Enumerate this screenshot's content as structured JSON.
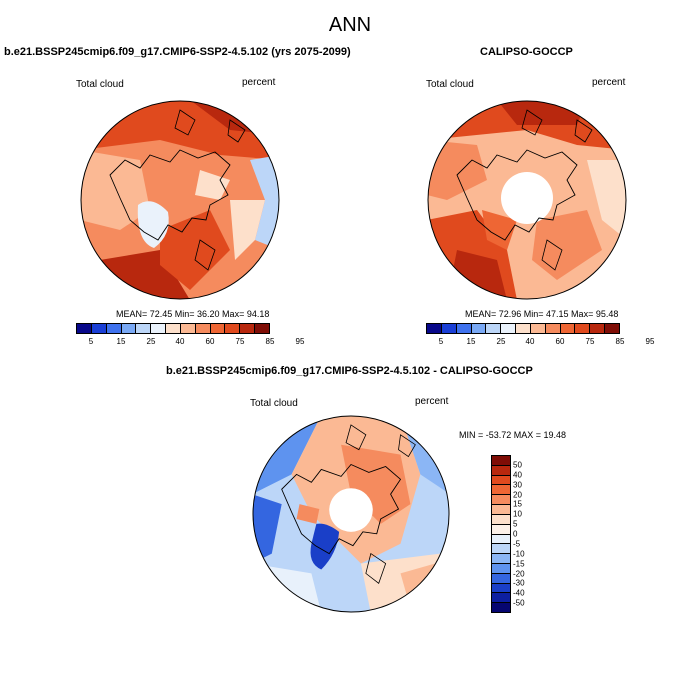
{
  "main_title": "ANN",
  "panels": [
    {
      "title": "b.e21.BSSP245cmip6.f09_g17.CMIP6-SSP2-4.5.102 (yrs 2075-2099)",
      "variable": "Total cloud",
      "units": "percent",
      "stats": "MEAN= 72.45  Min= 36.20  Max= 94.18"
    },
    {
      "title": "CALIPSO-GOCCP",
      "variable": "Total cloud",
      "units": "percent",
      "stats": "MEAN= 72.96  Min= 47.15  Max= 95.48"
    },
    {
      "title": "b.e21.BSSP245cmip6.f09_g17.CMIP6-SSP2-4.5.102 - CALIPSO-GOCCP",
      "variable": "Total cloud",
      "units": "percent",
      "stats": "MIN = -53.72 MAX =  19.48"
    }
  ],
  "colorbar_abs": {
    "labels": [
      "5",
      "15",
      "25",
      "40",
      "60",
      "75",
      "85",
      "95"
    ],
    "colors": [
      "#08088a",
      "#1a3fd6",
      "#3f72ee",
      "#7aa9f5",
      "#bcd6f8",
      "#eaf2fb",
      "#fde0cb",
      "#fbb994",
      "#f58b5e",
      "#ee6634",
      "#e04a1e",
      "#b8280e",
      "#7f0d06"
    ]
  },
  "colorbar_diff": {
    "labels": [
      "50",
      "40",
      "30",
      "20",
      "15",
      "10",
      "5",
      "0",
      "-5",
      "-10",
      "-15",
      "-20",
      "-30",
      "-40",
      "-50"
    ],
    "colors": [
      "#7f0d06",
      "#b8280e",
      "#e04a1e",
      "#ee6634",
      "#f58b5e",
      "#fbb994",
      "#fde0cb",
      "#fdf1e8",
      "#e8f1fb",
      "#bcd6f8",
      "#8bb6f5",
      "#5e93ef",
      "#3466e0",
      "#1a3fc8",
      "#0d1fa0",
      "#060670"
    ]
  }
}
